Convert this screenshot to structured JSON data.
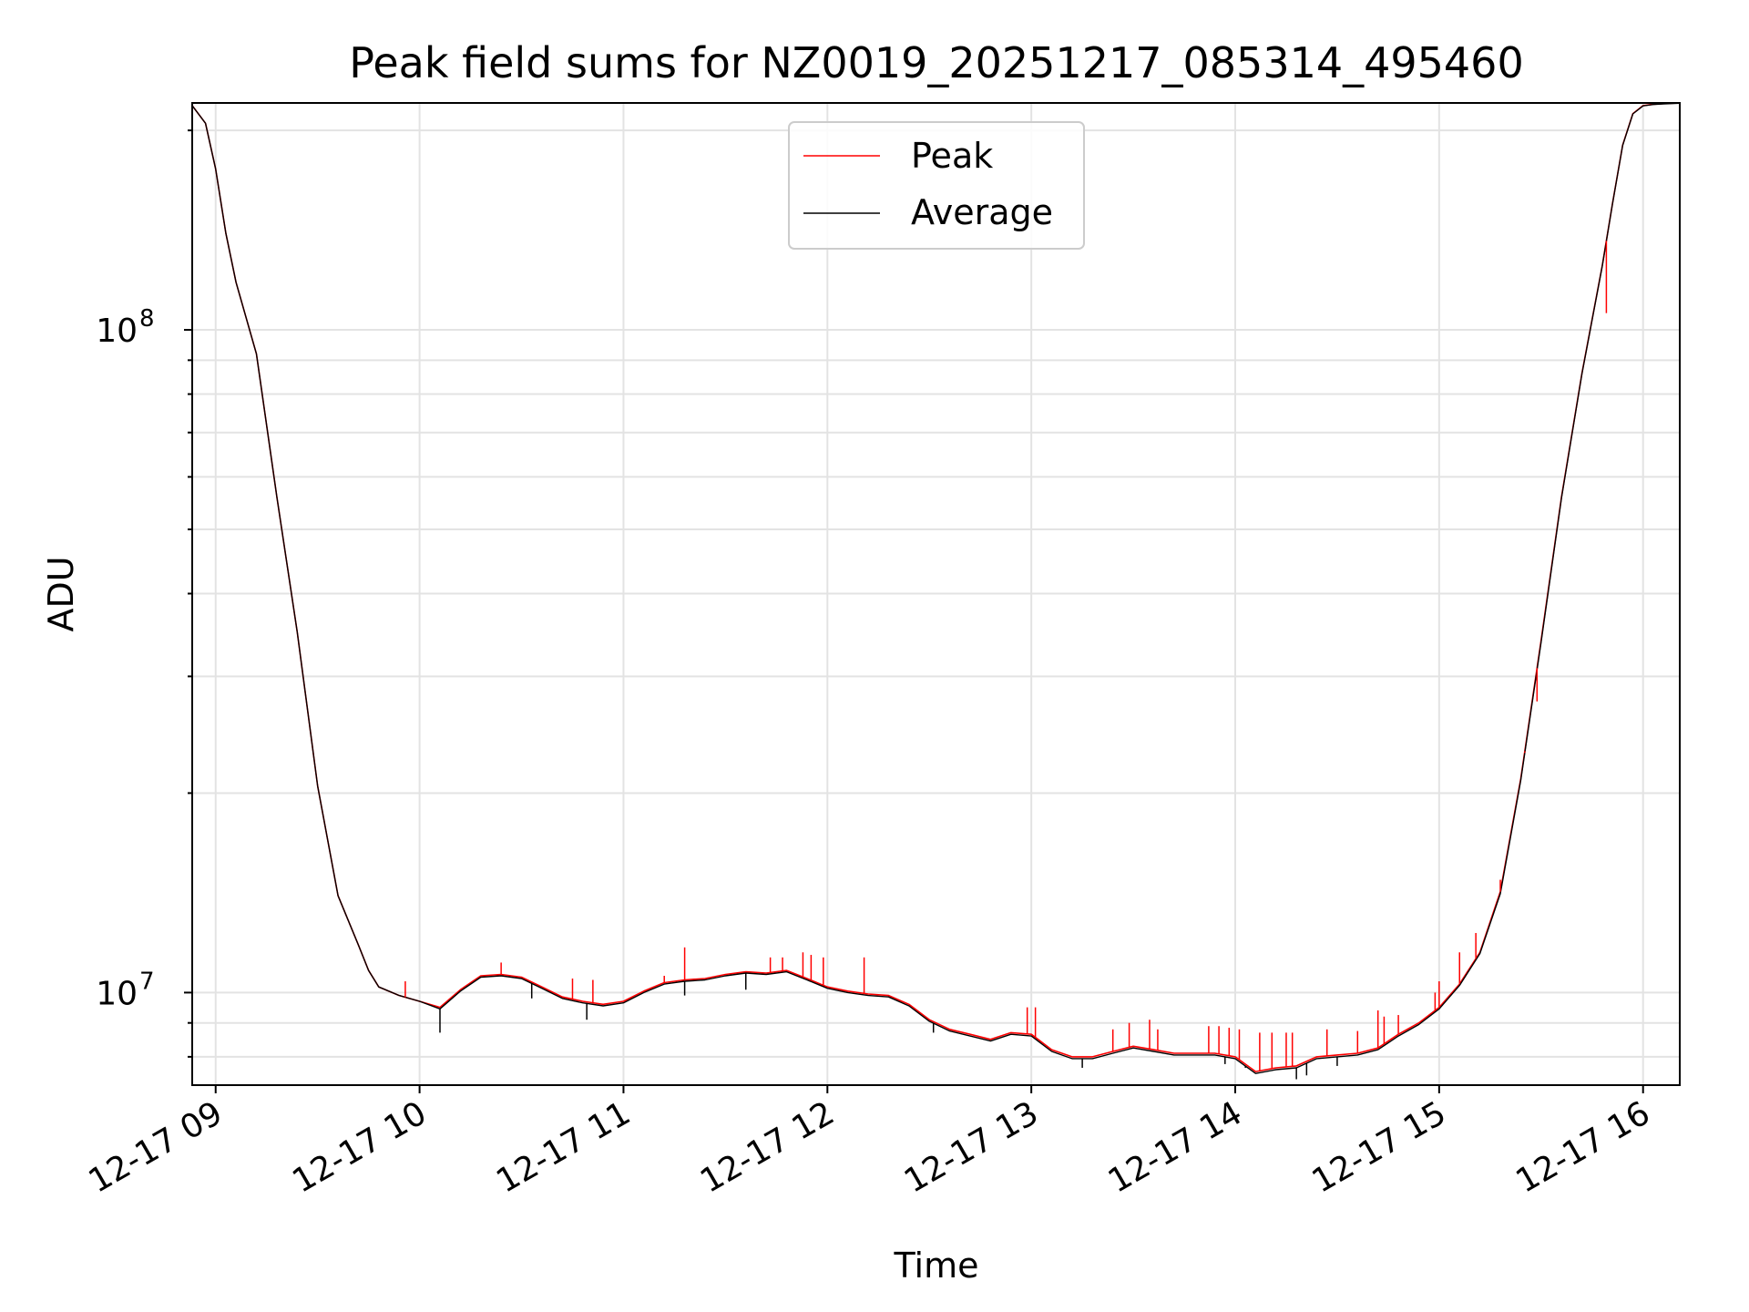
{
  "chart_data": {
    "type": "line",
    "title": "Peak field sums for NZ0019_20251217_085314_495460",
    "xlabel": "Time",
    "ylabel": "ADU",
    "yscale": "log",
    "xlim": [
      8.885,
      16.18
    ],
    "ylim": [
      7250000,
      220000000
    ],
    "grid": true,
    "legend_position": "top-center",
    "x_ticks": [
      {
        "value": 9,
        "label": "12-17 09"
      },
      {
        "value": 10,
        "label": "12-17 10"
      },
      {
        "value": 11,
        "label": "12-17 11"
      },
      {
        "value": 12,
        "label": "12-17 12"
      },
      {
        "value": 13,
        "label": "12-17 13"
      },
      {
        "value": 14,
        "label": "12-17 14"
      },
      {
        "value": 15,
        "label": "12-17 15"
      },
      {
        "value": 16,
        "label": "12-17 16"
      }
    ],
    "y_ticks": [
      {
        "value": 10000000,
        "base": "10",
        "exp": "7"
      },
      {
        "value": 100000000,
        "base": "10",
        "exp": "8"
      }
    ],
    "series": [
      {
        "name": "Peak",
        "color": "#ff0000",
        "x": [
          8.885,
          8.95,
          9.0,
          9.05,
          9.1,
          9.2,
          9.3,
          9.4,
          9.5,
          9.6,
          9.7,
          9.75,
          9.8,
          9.9,
          10.0,
          10.1,
          10.2,
          10.3,
          10.4,
          10.5,
          10.6,
          10.7,
          10.8,
          10.9,
          11.0,
          11.1,
          11.2,
          11.3,
          11.4,
          11.5,
          11.6,
          11.7,
          11.8,
          11.9,
          12.0,
          12.1,
          12.2,
          12.3,
          12.4,
          12.5,
          12.6,
          12.7,
          12.8,
          12.9,
          13.0,
          13.1,
          13.2,
          13.3,
          13.4,
          13.5,
          13.6,
          13.7,
          13.8,
          13.9,
          14.0,
          14.1,
          14.2,
          14.3,
          14.4,
          14.5,
          14.6,
          14.7,
          14.8,
          14.9,
          15.0,
          15.1,
          15.2,
          15.3,
          15.4,
          15.5,
          15.6,
          15.7,
          15.8,
          15.85,
          15.9,
          15.95,
          16.0,
          16.05,
          16.1,
          16.18
        ],
        "values": [
          218000000,
          205000000,
          175000000,
          140000000,
          118000000,
          92000000,
          56000000,
          35000000,
          20500000,
          14000000,
          11800000,
          10800000,
          10200000,
          9900000,
          9700000,
          9500000,
          10100000,
          10600000,
          10650000,
          10550000,
          10200000,
          9850000,
          9700000,
          9600000,
          9700000,
          10050000,
          10350000,
          10450000,
          10500000,
          10650000,
          10750000,
          10700000,
          10800000,
          10500000,
          10200000,
          10050000,
          9950000,
          9900000,
          9600000,
          9100000,
          8800000,
          8650000,
          8500000,
          8700000,
          8650000,
          8200000,
          8000000,
          8000000,
          8150000,
          8300000,
          8200000,
          8100000,
          8100000,
          8100000,
          8000000,
          7600000,
          7700000,
          7750000,
          8000000,
          8050000,
          8100000,
          8250000,
          8650000,
          9000000,
          9500000,
          10300000,
          11500000,
          14200000,
          21000000,
          34000000,
          56000000,
          86000000,
          125000000,
          155000000,
          190000000,
          212000000,
          218000000,
          219000000,
          219500000,
          220000000
        ]
      },
      {
        "name": "Average",
        "color": "#000000",
        "x": [
          8.885,
          8.95,
          9.0,
          9.05,
          9.1,
          9.2,
          9.3,
          9.4,
          9.5,
          9.6,
          9.7,
          9.75,
          9.8,
          9.9,
          10.0,
          10.1,
          10.2,
          10.3,
          10.4,
          10.5,
          10.6,
          10.7,
          10.8,
          10.9,
          11.0,
          11.1,
          11.2,
          11.3,
          11.4,
          11.5,
          11.6,
          11.7,
          11.8,
          11.9,
          12.0,
          12.1,
          12.2,
          12.3,
          12.4,
          12.5,
          12.6,
          12.7,
          12.8,
          12.9,
          13.0,
          13.1,
          13.2,
          13.3,
          13.4,
          13.5,
          13.6,
          13.7,
          13.8,
          13.9,
          14.0,
          14.1,
          14.2,
          14.3,
          14.4,
          14.5,
          14.6,
          14.7,
          14.8,
          14.9,
          15.0,
          15.1,
          15.2,
          15.3,
          15.4,
          15.5,
          15.6,
          15.7,
          15.8,
          15.85,
          15.9,
          15.95,
          16.0,
          16.05,
          16.1,
          16.18
        ],
        "values": [
          218000000,
          205000000,
          175000000,
          140000000,
          118000000,
          92000000,
          56000000,
          35000000,
          20500000,
          14000000,
          11800000,
          10800000,
          10200000,
          9900000,
          9700000,
          9450000,
          10050000,
          10550000,
          10600000,
          10500000,
          10150000,
          9800000,
          9650000,
          9550000,
          9650000,
          10000000,
          10300000,
          10400000,
          10450000,
          10600000,
          10700000,
          10650000,
          10750000,
          10450000,
          10150000,
          10000000,
          9900000,
          9850000,
          9550000,
          9050000,
          8750000,
          8600000,
          8450000,
          8650000,
          8600000,
          8150000,
          7950000,
          7950000,
          8100000,
          8250000,
          8150000,
          8050000,
          8050000,
          8050000,
          7950000,
          7550000,
          7650000,
          7700000,
          7950000,
          8000000,
          8050000,
          8200000,
          8600000,
          8950000,
          9450000,
          10250000,
          11450000,
          14100000,
          20900000,
          33800000,
          55800000,
          85800000,
          124800000,
          154800000,
          189800000,
          211800000,
          217800000,
          218800000,
          219300000,
          219800000
        ]
      }
    ],
    "spikes": {
      "Peak": [
        {
          "x": 9.93,
          "value": 10400000
        },
        {
          "x": 10.4,
          "value": 11100000
        },
        {
          "x": 10.75,
          "value": 10500000
        },
        {
          "x": 10.85,
          "value": 10450000
        },
        {
          "x": 11.2,
          "value": 10600000
        },
        {
          "x": 11.3,
          "value": 11700000
        },
        {
          "x": 11.72,
          "value": 11300000
        },
        {
          "x": 11.78,
          "value": 11300000
        },
        {
          "x": 11.88,
          "value": 11500000
        },
        {
          "x": 11.92,
          "value": 11400000
        },
        {
          "x": 11.98,
          "value": 11300000
        },
        {
          "x": 12.18,
          "value": 11300000
        },
        {
          "x": 12.98,
          "value": 9500000
        },
        {
          "x": 13.02,
          "value": 9500000
        },
        {
          "x": 13.4,
          "value": 8800000
        },
        {
          "x": 13.48,
          "value": 9000000
        },
        {
          "x": 13.58,
          "value": 9100000
        },
        {
          "x": 13.62,
          "value": 8800000
        },
        {
          "x": 13.87,
          "value": 8900000
        },
        {
          "x": 13.92,
          "value": 8900000
        },
        {
          "x": 13.97,
          "value": 8850000
        },
        {
          "x": 14.02,
          "value": 8800000
        },
        {
          "x": 14.12,
          "value": 8700000
        },
        {
          "x": 14.18,
          "value": 8700000
        },
        {
          "x": 14.25,
          "value": 8700000
        },
        {
          "x": 14.28,
          "value": 8700000
        },
        {
          "x": 14.45,
          "value": 8800000
        },
        {
          "x": 14.6,
          "value": 8750000
        },
        {
          "x": 14.7,
          "value": 9400000
        },
        {
          "x": 14.73,
          "value": 9200000
        },
        {
          "x": 14.8,
          "value": 9250000
        },
        {
          "x": 14.98,
          "value": 10000000
        },
        {
          "x": 15.0,
          "value": 10400000
        },
        {
          "x": 15.1,
          "value": 11500000
        },
        {
          "x": 15.18,
          "value": 12300000
        },
        {
          "x": 15.3,
          "value": 14800000
        },
        {
          "x": 15.42,
          "value": 23000000
        },
        {
          "x": 15.48,
          "value": 27500000
        },
        {
          "x": 15.82,
          "value": 106000000
        }
      ],
      "Average": [
        {
          "x": 10.1,
          "value": 8700000
        },
        {
          "x": 10.55,
          "value": 9800000
        },
        {
          "x": 10.82,
          "value": 9100000
        },
        {
          "x": 11.3,
          "value": 9900000
        },
        {
          "x": 11.6,
          "value": 10100000
        },
        {
          "x": 12.52,
          "value": 8700000
        },
        {
          "x": 13.25,
          "value": 7700000
        },
        {
          "x": 13.95,
          "value": 7800000
        },
        {
          "x": 14.05,
          "value": 7700000
        },
        {
          "x": 14.3,
          "value": 7400000
        },
        {
          "x": 14.35,
          "value": 7500000
        },
        {
          "x": 14.5,
          "value": 7750000
        }
      ]
    }
  }
}
